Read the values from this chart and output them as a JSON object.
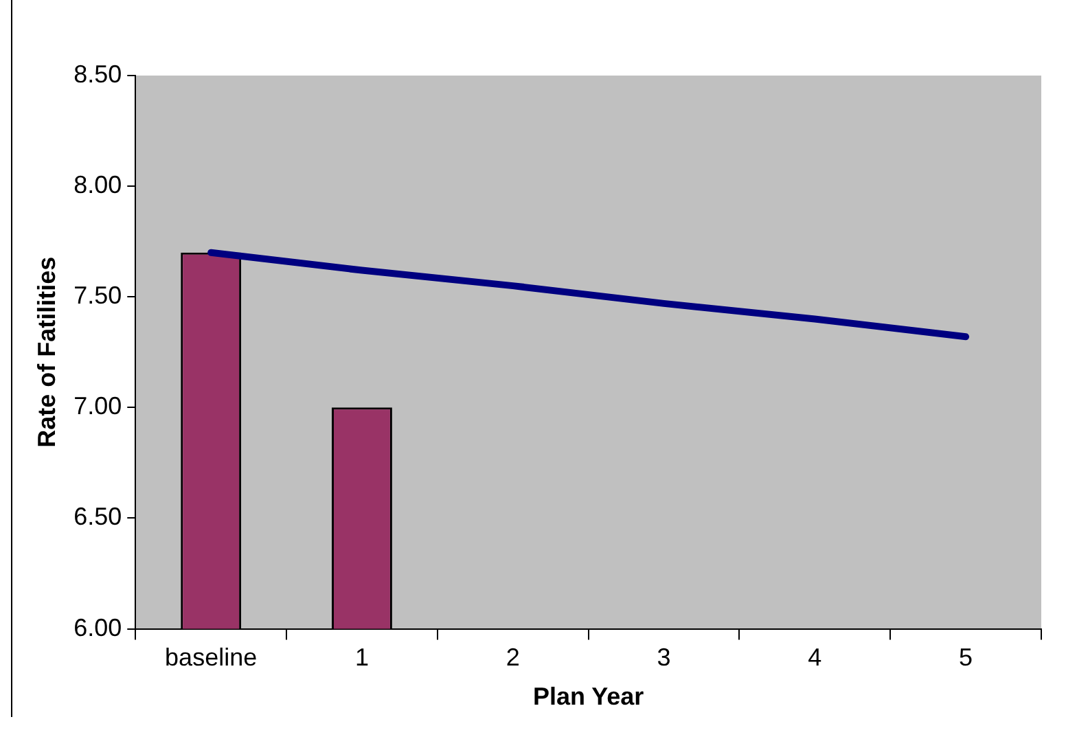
{
  "chart_data": {
    "type": "bar",
    "xlabel": "Plan Year",
    "ylabel": "Rate of Fatilities",
    "categories": [
      "baseline",
      "1",
      "2",
      "3",
      "4",
      "5"
    ],
    "series": [
      {
        "type": "bar",
        "color": "#993366",
        "values": [
          7.7,
          7.0,
          null,
          null,
          null,
          null
        ]
      },
      {
        "type": "line",
        "color": "#000080",
        "values": [
          7.7,
          7.62,
          7.55,
          7.47,
          7.4,
          7.32
        ]
      }
    ],
    "ylim": [
      6,
      8.5
    ],
    "yticks": [
      {
        "value": 6,
        "label": "6.00"
      },
      {
        "value": 6.5,
        "label": "6.50"
      },
      {
        "value": 7,
        "label": "7.00"
      },
      {
        "value": 7.5,
        "label": "7.50"
      },
      {
        "value": 8,
        "label": "8.00"
      },
      {
        "value": 8.5,
        "label": "8.50"
      }
    ],
    "grid": false,
    "legend": false,
    "marker": "none"
  }
}
